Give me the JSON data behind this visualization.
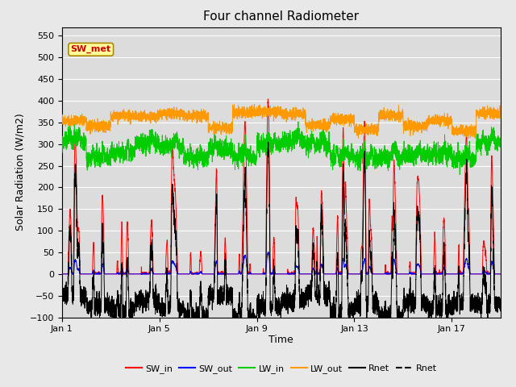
{
  "title": "Four channel Radiometer",
  "xlabel": "Time",
  "ylabel": "Solar Radiation (W/m2)",
  "ylim": [
    -100,
    570
  ],
  "yticks": [
    -100,
    -50,
    0,
    50,
    100,
    150,
    200,
    250,
    300,
    350,
    400,
    450,
    500,
    550
  ],
  "x_tick_labels": [
    "Jan 1",
    "Jan 5",
    "Jan 9",
    "Jan 13",
    "Jan 17"
  ],
  "x_tick_pos": [
    0,
    4,
    8,
    12,
    16
  ],
  "n_days": 18,
  "points_per_day": 288,
  "legend_entries": [
    "SW_in",
    "SW_out",
    "LW_in",
    "LW_out",
    "Rnet",
    "Rnet"
  ],
  "legend_colors": [
    "#ff0000",
    "#0000ff",
    "#00cc00",
    "#ff9900",
    "#000000",
    "#000000"
  ],
  "colors": {
    "SW_in": "#ff0000",
    "SW_out": "#0000ff",
    "LW_in": "#00cc00",
    "LW_out": "#ff9900",
    "Rnet": "#000000"
  },
  "annotation_text": "SW_met",
  "fig_facecolor": "#e8e8e8",
  "ax_facecolor": "#dcdcdc",
  "grid_color": "#ffffff"
}
